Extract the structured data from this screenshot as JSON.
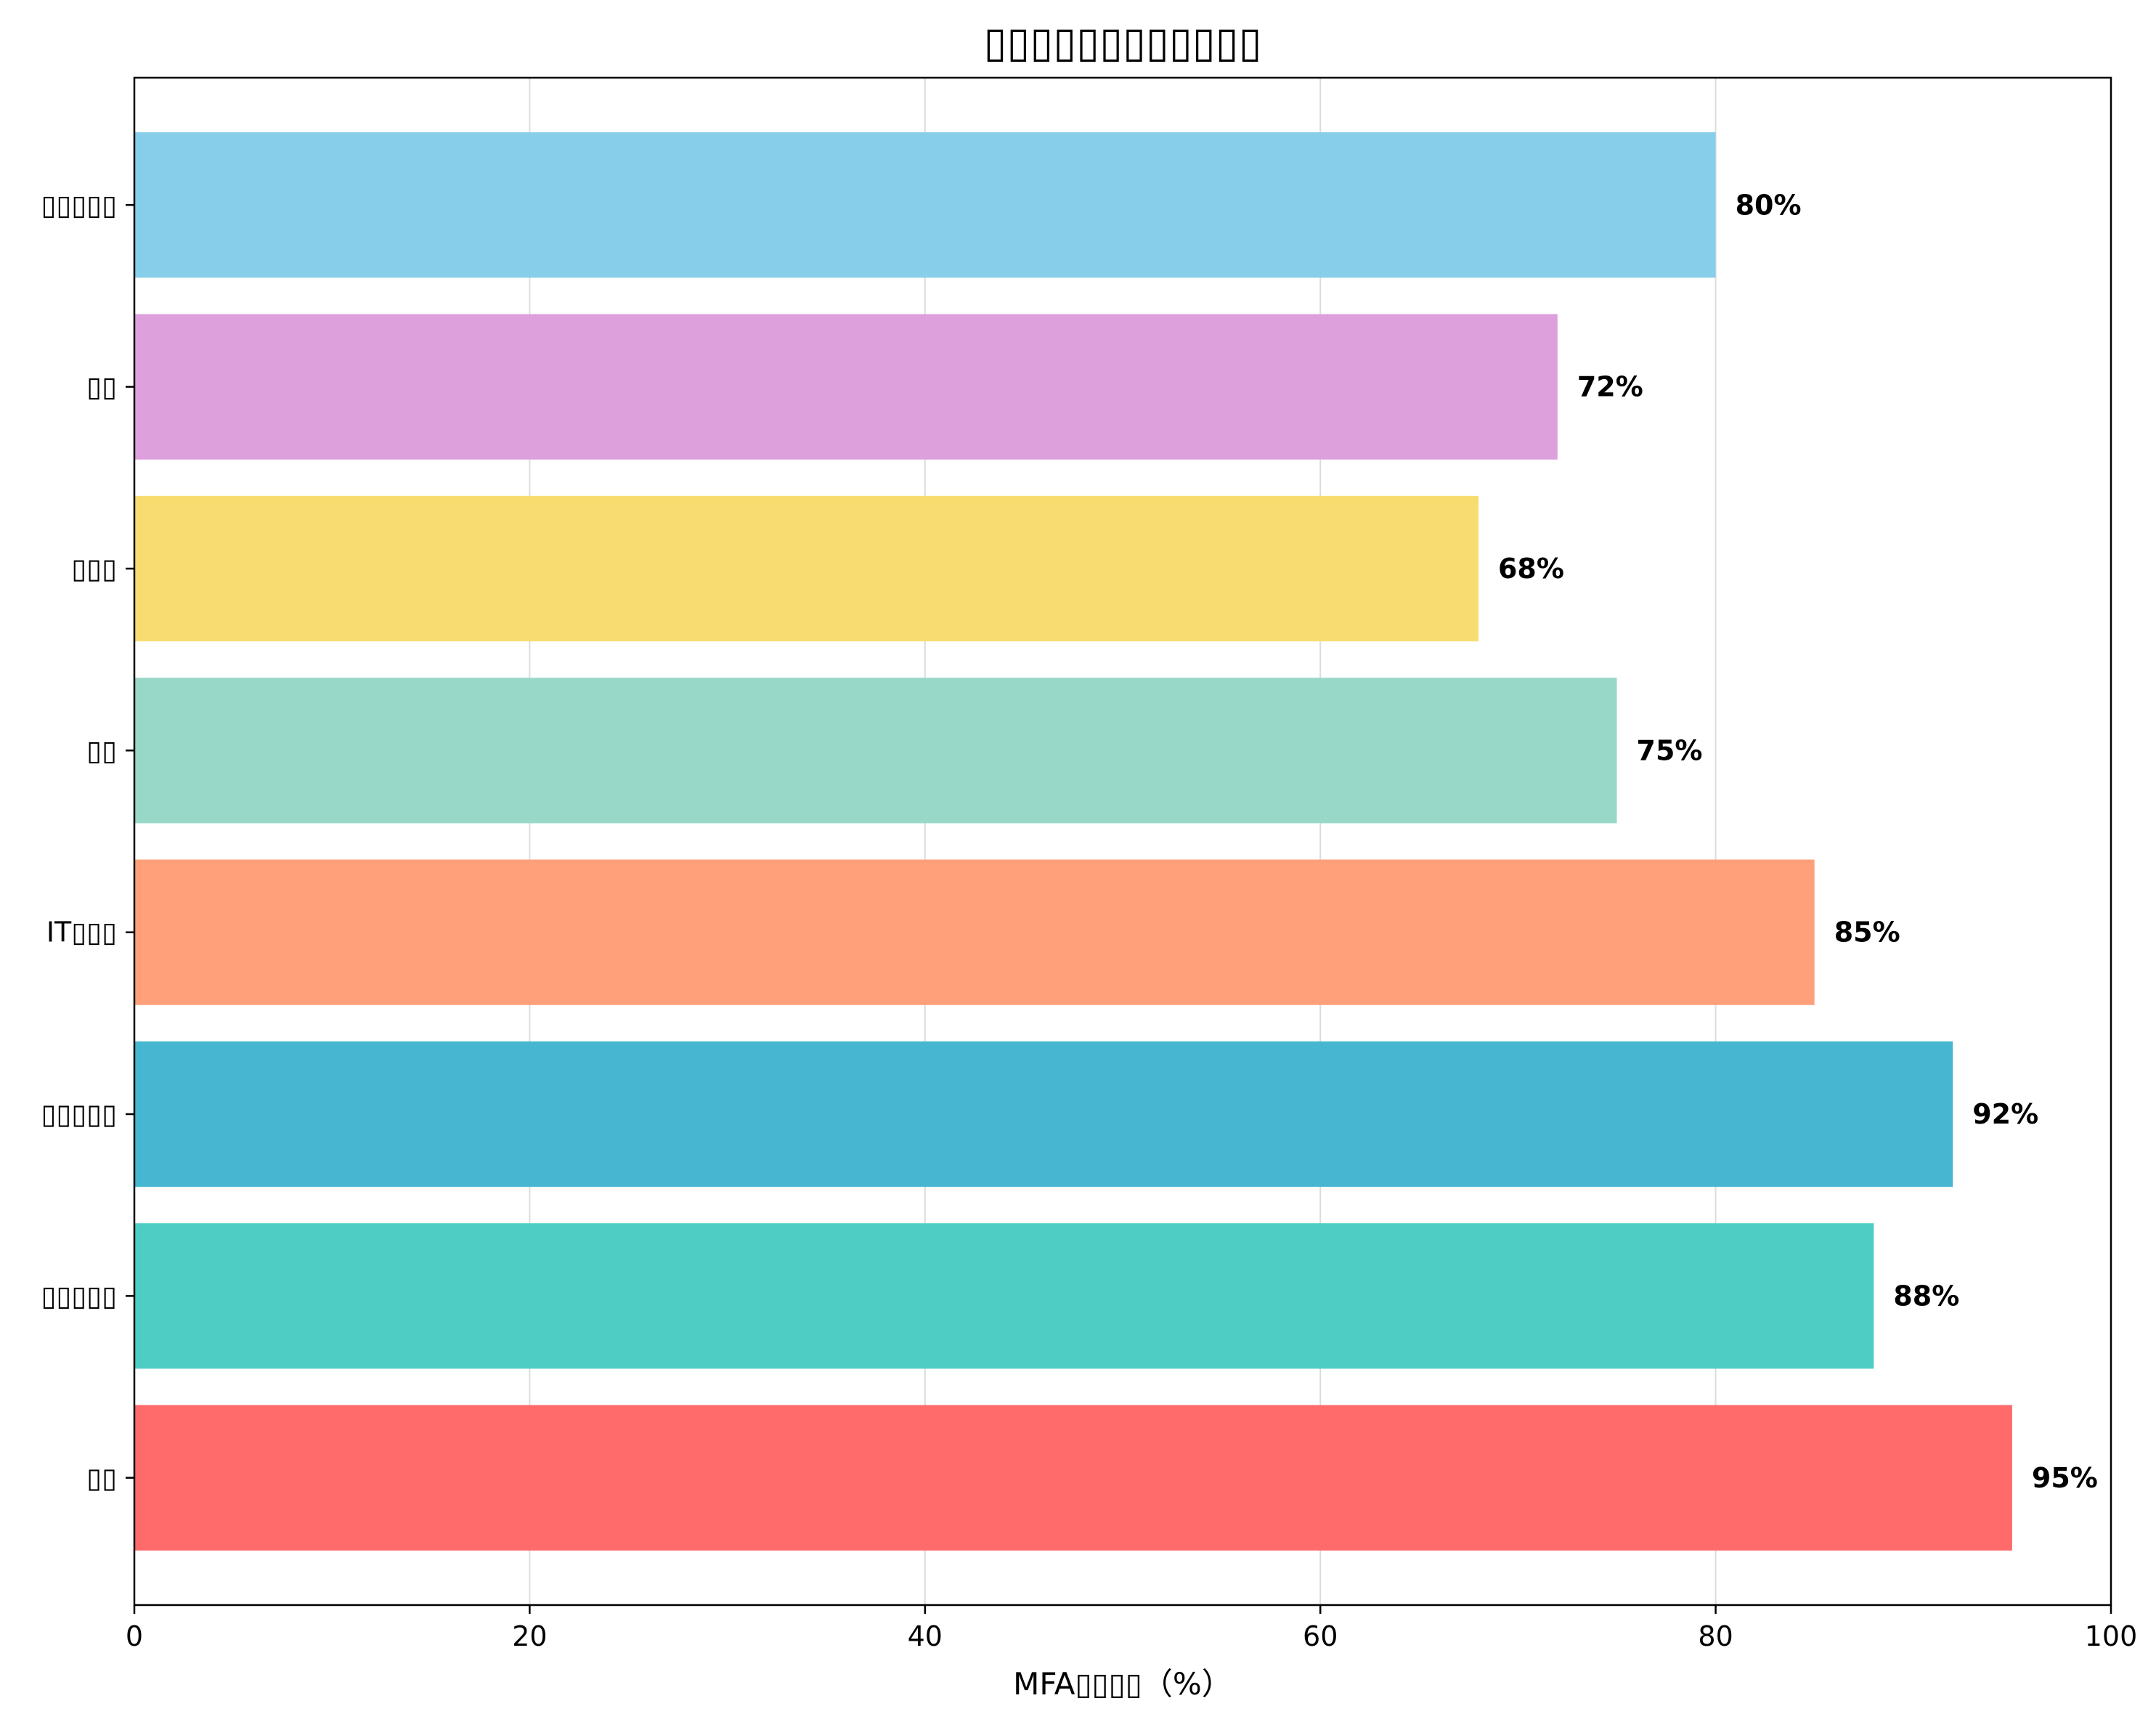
{
  "chart_data": {
    "type": "bar",
    "orientation": "horizontal",
    "title": "▯▯▯▯▯▯▯▯▯▯▯▯",
    "xlabel": "MFA▯▯▯▯（%）",
    "ylabel": "",
    "categories": [
      "▯▯",
      "▯▯▯▯▯",
      "▯▯▯▯▯",
      "IT▯▯▯",
      "▯▯",
      "▯▯▯",
      "▯▯",
      "▯▯▯▯▯"
    ],
    "values": [
      95,
      88,
      92,
      85,
      75,
      68,
      72,
      80
    ],
    "value_labels": [
      "95%",
      "88%",
      "92%",
      "85%",
      "75%",
      "68%",
      "72%",
      "80%"
    ],
    "colors": [
      "#ff6b6b",
      "#4ecdc4",
      "#45b7d1",
      "#ffa07a",
      "#98d8c8",
      "#f7dc6f",
      "#dda0dd",
      "#87ceeb"
    ],
    "xlim": [
      0,
      100
    ],
    "xticks": [
      0,
      20,
      40,
      60,
      80,
      100
    ],
    "grid": "vertical",
    "legend": "none"
  }
}
